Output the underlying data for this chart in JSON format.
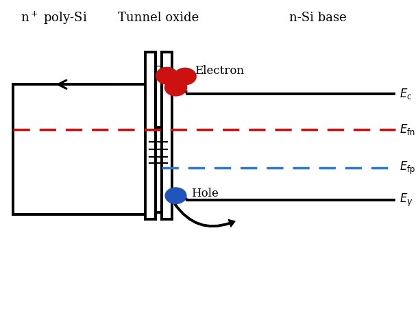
{
  "bg_color": "#ffffff",
  "line_color": "#000000",
  "red_dash_color": "#cc1111",
  "blue_dash_color": "#3377cc",
  "electron_color": "#cc1111",
  "hole_color": "#2255bb",
  "labels": {
    "n_poly": "n$^+$ poly-Si",
    "tunnel": "Tunnel oxide",
    "n_si": "n-Si base",
    "Ec": "$E_{\\mathrm{c}}$",
    "Efn": "$E_{\\mathrm{fn}}$",
    "Efp": "$E_{\\mathrm{fp}}$",
    "Eg": "$E_{\\gamma}$",
    "electron": "Electron",
    "hole": "Hole"
  },
  "figsize": [
    6.1,
    4.54
  ],
  "dpi": 100,
  "lw": 2.8
}
